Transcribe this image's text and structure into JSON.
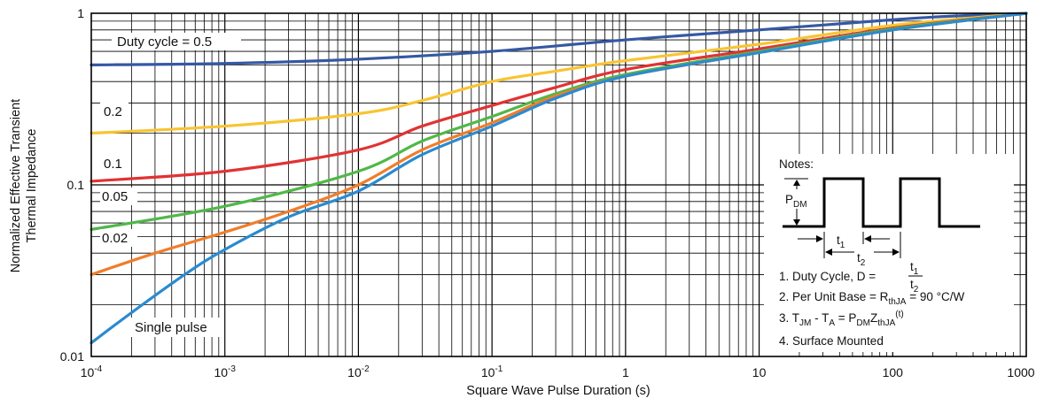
{
  "chart_data": {
    "type": "line",
    "title": "",
    "xlabel": "Square Wave Pulse Duration (s)",
    "ylabel_lines": [
      "Normalized Effective Transient",
      "Thermal Impedance"
    ],
    "x_scale": "log",
    "y_scale": "log",
    "xlim": [
      0.0001,
      1000
    ],
    "ylim": [
      0.01,
      1
    ],
    "grid": true,
    "x_ticks": [
      {
        "value": 0.0001,
        "base": "10",
        "exp": "-4"
      },
      {
        "value": 0.001,
        "base": "10",
        "exp": "-3"
      },
      {
        "value": 0.01,
        "base": "10",
        "exp": "-2"
      },
      {
        "value": 0.1,
        "base": "10",
        "exp": "-1"
      },
      {
        "value": 1,
        "base": "1",
        "exp": ""
      },
      {
        "value": 10,
        "base": "10",
        "exp": ""
      },
      {
        "value": 100,
        "base": "100",
        "exp": ""
      },
      {
        "value": 1000,
        "base": "1000",
        "exp": ""
      }
    ],
    "y_ticks": [
      {
        "value": 0.01,
        "label": "0.01"
      },
      {
        "value": 0.1,
        "label": "0.1"
      },
      {
        "value": 1,
        "label": "1"
      }
    ],
    "series": [
      {
        "name": "Duty cycle = 0.5",
        "color": "#3458a4",
        "x": [
          0.0001,
          0.001,
          0.01,
          0.1,
          1,
          10,
          50,
          200,
          1000
        ],
        "y": [
          0.5,
          0.51,
          0.54,
          0.6,
          0.7,
          0.8,
          0.88,
          0.95,
          1.0
        ]
      },
      {
        "name": "0.2",
        "color": "#f9c431",
        "x": [
          0.0001,
          0.001,
          0.01,
          0.03,
          0.1,
          0.3,
          1,
          10,
          100,
          1000
        ],
        "y": [
          0.2,
          0.22,
          0.26,
          0.31,
          0.4,
          0.46,
          0.53,
          0.66,
          0.85,
          1.0
        ]
      },
      {
        "name": "0.1",
        "color": "#e23232",
        "x": [
          0.0001,
          0.001,
          0.01,
          0.03,
          0.1,
          0.3,
          1,
          10,
          100,
          1000
        ],
        "y": [
          0.105,
          0.12,
          0.16,
          0.22,
          0.29,
          0.37,
          0.47,
          0.62,
          0.82,
          1.0
        ]
      },
      {
        "name": "0.05",
        "color": "#50b848",
        "x": [
          0.0001,
          0.001,
          0.01,
          0.03,
          0.1,
          0.3,
          1,
          10,
          100,
          1000
        ],
        "y": [
          0.055,
          0.075,
          0.12,
          0.18,
          0.25,
          0.34,
          0.44,
          0.6,
          0.81,
          1.0
        ]
      },
      {
        "name": "0.02",
        "color": "#f07d2a",
        "x": [
          0.0001,
          0.0003,
          0.001,
          0.003,
          0.01,
          0.03,
          0.1,
          0.3,
          1,
          10,
          100,
          1000
        ],
        "y": [
          0.03,
          0.04,
          0.053,
          0.07,
          0.1,
          0.16,
          0.23,
          0.33,
          0.43,
          0.59,
          0.8,
          1.0
        ]
      },
      {
        "name": "Single pulse",
        "color": "#2a8bd0",
        "x": [
          0.0001,
          0.0002,
          0.0005,
          0.001,
          0.003,
          0.01,
          0.03,
          0.1,
          0.3,
          1,
          10,
          100,
          1000
        ],
        "y": [
          0.012,
          0.018,
          0.03,
          0.042,
          0.065,
          0.092,
          0.15,
          0.22,
          0.32,
          0.43,
          0.59,
          0.8,
          1.0
        ]
      }
    ],
    "curve_labels": [
      "Duty cycle = 0.5",
      "0.2",
      "0.1",
      "0.05",
      "0.02",
      "Single pulse"
    ]
  },
  "notes": {
    "title": "Notes:",
    "pdm": {
      "main": "P",
      "sub": "DM"
    },
    "t1": {
      "main": "t",
      "sub": "1"
    },
    "t2": {
      "main": "t",
      "sub": "2"
    },
    "line1": {
      "text": "1. Duty Cycle, D = ",
      "num": {
        "main": "t",
        "sub": "1"
      },
      "den": {
        "main": "t",
        "sub": "2"
      }
    },
    "line2": {
      "pre": "2. Per Unit Base = R",
      "sub": "thJA",
      "post": " = 90 °C/W"
    },
    "line3": {
      "p1": "3. T",
      "s1": "JM",
      "p2": " - T",
      "s2": "A",
      "p3": " = P",
      "s3": "DM",
      "p4": "Z",
      "s4": "thJA",
      "sup": "(t)"
    },
    "line4": "4. Surface Mounted"
  }
}
